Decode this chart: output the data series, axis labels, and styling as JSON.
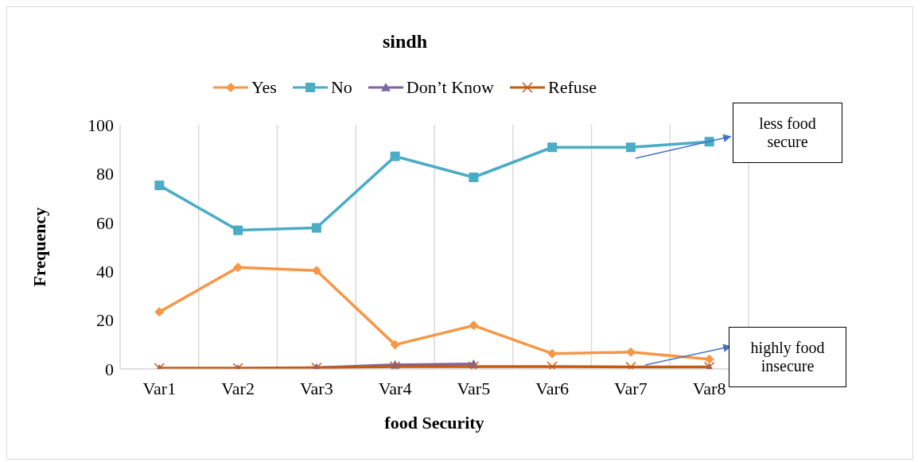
{
  "chart_data": {
    "type": "line",
    "title": "sindh",
    "xlabel": "food Security",
    "ylabel": "Frequency",
    "categories": [
      "Var1",
      "Var2",
      "Var3",
      "Var4",
      "Var5",
      "Var6",
      "Var7",
      "Var8"
    ],
    "series": [
      {
        "name": "Yes",
        "color": "#f79646",
        "marker": "diamond",
        "values": [
          23.4,
          41.6,
          40.3,
          9.9,
          17.8,
          6.3,
          6.9,
          4.0
        ]
      },
      {
        "name": "No",
        "color": "#4bacc6",
        "marker": "square",
        "values": [
          75.2,
          56.8,
          57.8,
          87.1,
          78.5,
          90.8,
          90.8,
          93.1
        ]
      },
      {
        "name": "Don’t Know",
        "color": "#8064a2",
        "marker": "triangle",
        "values": [
          0,
          0,
          0.5,
          1.7,
          2,
          null,
          null,
          0.5
        ]
      },
      {
        "name": "Refuse",
        "color": "#c55a11",
        "marker": "cross",
        "values": [
          0.3,
          0.3,
          0.5,
          1,
          1,
          1,
          0.8,
          0.8
        ]
      }
    ],
    "ylim": [
      0,
      100
    ],
    "yticks": [
      0,
      20,
      40,
      60,
      80,
      100
    ],
    "grid": "x",
    "legend": "top",
    "annotations": [
      "less food secure",
      "highly food insecure"
    ]
  }
}
